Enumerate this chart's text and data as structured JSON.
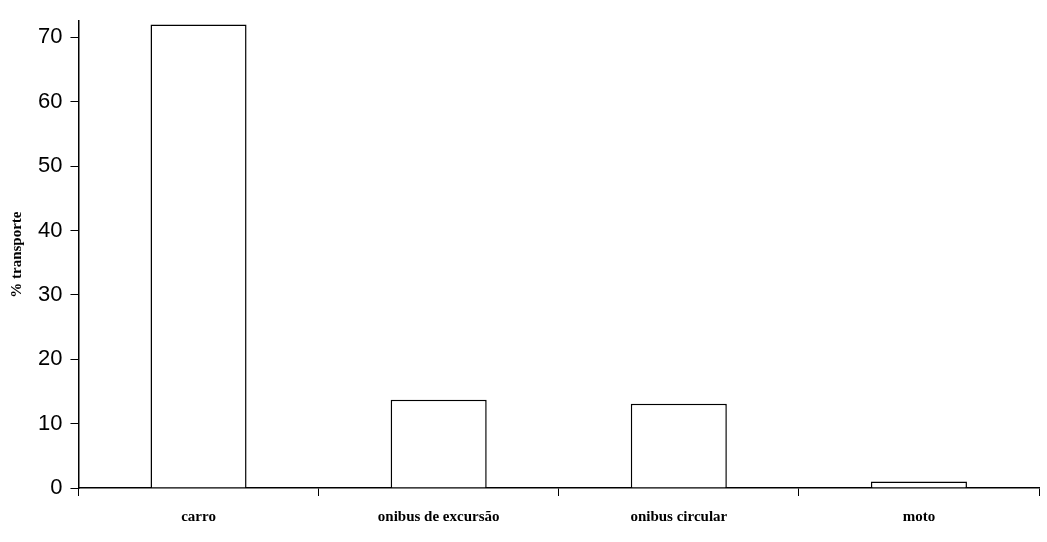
{
  "chart_data": {
    "type": "bar",
    "ylabel": "% transporte",
    "categories": [
      "carro",
      "onibus de excursão",
      "onibus circular",
      "moto"
    ],
    "series": [
      {
        "color": "#ffffff",
        "values": [
          72,
          13.7,
          13.1,
          1
        ]
      }
    ],
    "ylim": [
      0,
      72.5
    ],
    "yticks": [
      0,
      10,
      20,
      30,
      40,
      50,
      60,
      70
    ],
    "grid": false,
    "legend": false
  }
}
